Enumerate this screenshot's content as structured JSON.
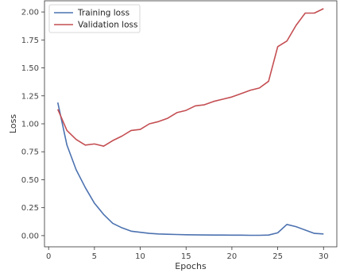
{
  "chart_data": {
    "type": "line",
    "title": "",
    "xlabel": "Epochs",
    "ylabel": "Loss",
    "xlim": [
      -0.45,
      31.45
    ],
    "ylim": [
      -0.1,
      2.1
    ],
    "xticks": [
      0,
      5,
      10,
      15,
      20,
      25,
      30
    ],
    "yticks": [
      0.0,
      0.25,
      0.5,
      0.75,
      1.0,
      1.25,
      1.5,
      1.75,
      2.0
    ],
    "ytick_labels": [
      "0.00",
      "0.25",
      "0.50",
      "0.75",
      "1.00",
      "1.25",
      "1.50",
      "1.75",
      "2.00"
    ],
    "grid": false,
    "legend_position": "top-left",
    "series": [
      {
        "name": "Training loss",
        "color": "#4c72b0",
        "x": [
          1,
          2,
          3,
          4,
          5,
          6,
          7,
          8,
          9,
          10,
          11,
          12,
          13,
          14,
          15,
          16,
          17,
          18,
          19,
          20,
          21,
          22,
          23,
          24,
          25,
          26,
          27,
          28,
          29,
          30
        ],
        "values": [
          1.19,
          0.81,
          0.59,
          0.43,
          0.29,
          0.19,
          0.11,
          0.07,
          0.04,
          0.03,
          0.02,
          0.015,
          0.012,
          0.01,
          0.008,
          0.007,
          0.006,
          0.005,
          0.005,
          0.004,
          0.004,
          0.003,
          0.003,
          0.005,
          0.025,
          0.1,
          0.08,
          0.05,
          0.02,
          0.015
        ]
      },
      {
        "name": "Validation loss",
        "color": "#c44e52",
        "x": [
          1,
          2,
          3,
          4,
          5,
          6,
          7,
          8,
          9,
          10,
          11,
          12,
          13,
          14,
          15,
          16,
          17,
          18,
          19,
          20,
          21,
          22,
          23,
          24,
          25,
          26,
          27,
          28,
          29,
          30
        ],
        "values": [
          1.13,
          0.94,
          0.86,
          0.81,
          0.82,
          0.8,
          0.85,
          0.89,
          0.94,
          0.95,
          1.0,
          1.02,
          1.05,
          1.1,
          1.12,
          1.16,
          1.17,
          1.2,
          1.22,
          1.24,
          1.27,
          1.3,
          1.32,
          1.38,
          1.69,
          1.74,
          1.88,
          1.99,
          1.99,
          2.03
        ]
      }
    ]
  }
}
